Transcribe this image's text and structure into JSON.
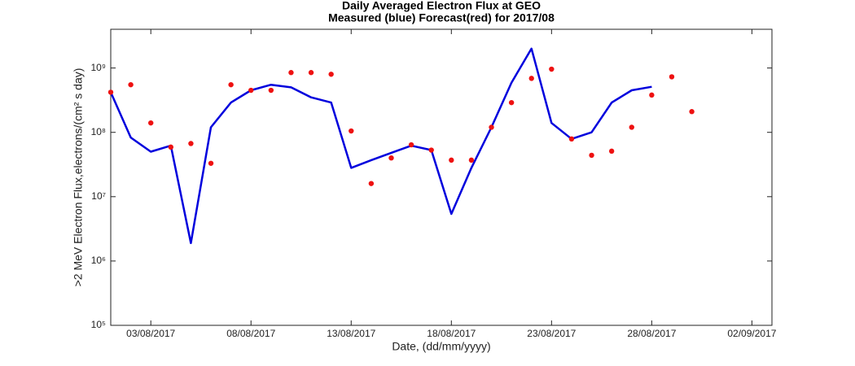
{
  "chart_data": {
    "type": "line",
    "title": "Daily Averaged Electron Flux at GEO",
    "subtitle": "Measured (blue) Forecast(red) for 2017/08",
    "x_label": "Date, (dd/mm/yyyy)",
    "y_label": ">2 MeV Electron Flux,electrons/(cm² s day)",
    "y_scale": "log",
    "x": [
      "2017-08-01",
      "2017-08-02",
      "2017-08-03",
      "2017-08-04",
      "2017-08-05",
      "2017-08-06",
      "2017-08-07",
      "2017-08-08",
      "2017-08-09",
      "2017-08-10",
      "2017-08-11",
      "2017-08-12",
      "2017-08-13",
      "2017-08-14",
      "2017-08-15",
      "2017-08-16",
      "2017-08-17",
      "2017-08-18",
      "2017-08-19",
      "2017-08-20",
      "2017-08-21",
      "2017-08-22",
      "2017-08-23",
      "2017-08-24",
      "2017-08-25",
      "2017-08-26",
      "2017-08-27",
      "2017-08-28",
      "2017-08-29",
      "2017-08-30"
    ],
    "series": [
      {
        "name": "Measured",
        "color": "#0000dd",
        "style": "line",
        "values": [
          420000000,
          83000000,
          50000000,
          62000000,
          1900000,
          120000000,
          290000000,
          450000000,
          550000000,
          500000000,
          350000000,
          290000000,
          28000000,
          37000000,
          48000000,
          62000000,
          53000000,
          5400000,
          28000000,
          120000000,
          590000000,
          2000000000,
          140000000,
          79000000,
          100000000,
          290000000,
          450000000,
          510000000,
          null,
          null
        ]
      },
      {
        "name": "Forecast",
        "color": "#ee1111",
        "style": "dots",
        "values": [
          420000000,
          550000000,
          140000000,
          59000000,
          67000000,
          33000000,
          550000000,
          450000000,
          450000000,
          850000000,
          850000000,
          800000000,
          105000000,
          16000000,
          40000000,
          64000000,
          53000000,
          37000000,
          37000000,
          120000000,
          290000000,
          690000000,
          960000000,
          79000000,
          44000000,
          51000000,
          120000000,
          380000000,
          730000000,
          210000000
        ]
      }
    ],
    "xlim": [
      "2017-08-01",
      "2017-09-03"
    ],
    "xticks": [
      {
        "value": "2017-08-03",
        "label": "03/08/2017"
      },
      {
        "value": "2017-08-08",
        "label": "08/08/2017"
      },
      {
        "value": "2017-08-13",
        "label": "13/08/2017"
      },
      {
        "value": "2017-08-18",
        "label": "18/08/2017"
      },
      {
        "value": "2017-08-23",
        "label": "23/08/2017"
      },
      {
        "value": "2017-08-28",
        "label": "28/08/2017"
      },
      {
        "value": "2017-09-02",
        "label": "02/09/2017"
      }
    ],
    "ylim": [
      100000,
      4000000000
    ],
    "yticks": [
      {
        "value": 100000,
        "label": "10⁵"
      },
      {
        "value": 1000000,
        "label": "10⁶"
      },
      {
        "value": 10000000,
        "label": "10⁷"
      },
      {
        "value": 100000000,
        "label": "10⁸"
      },
      {
        "value": 1000000000,
        "label": "10⁹"
      }
    ]
  }
}
